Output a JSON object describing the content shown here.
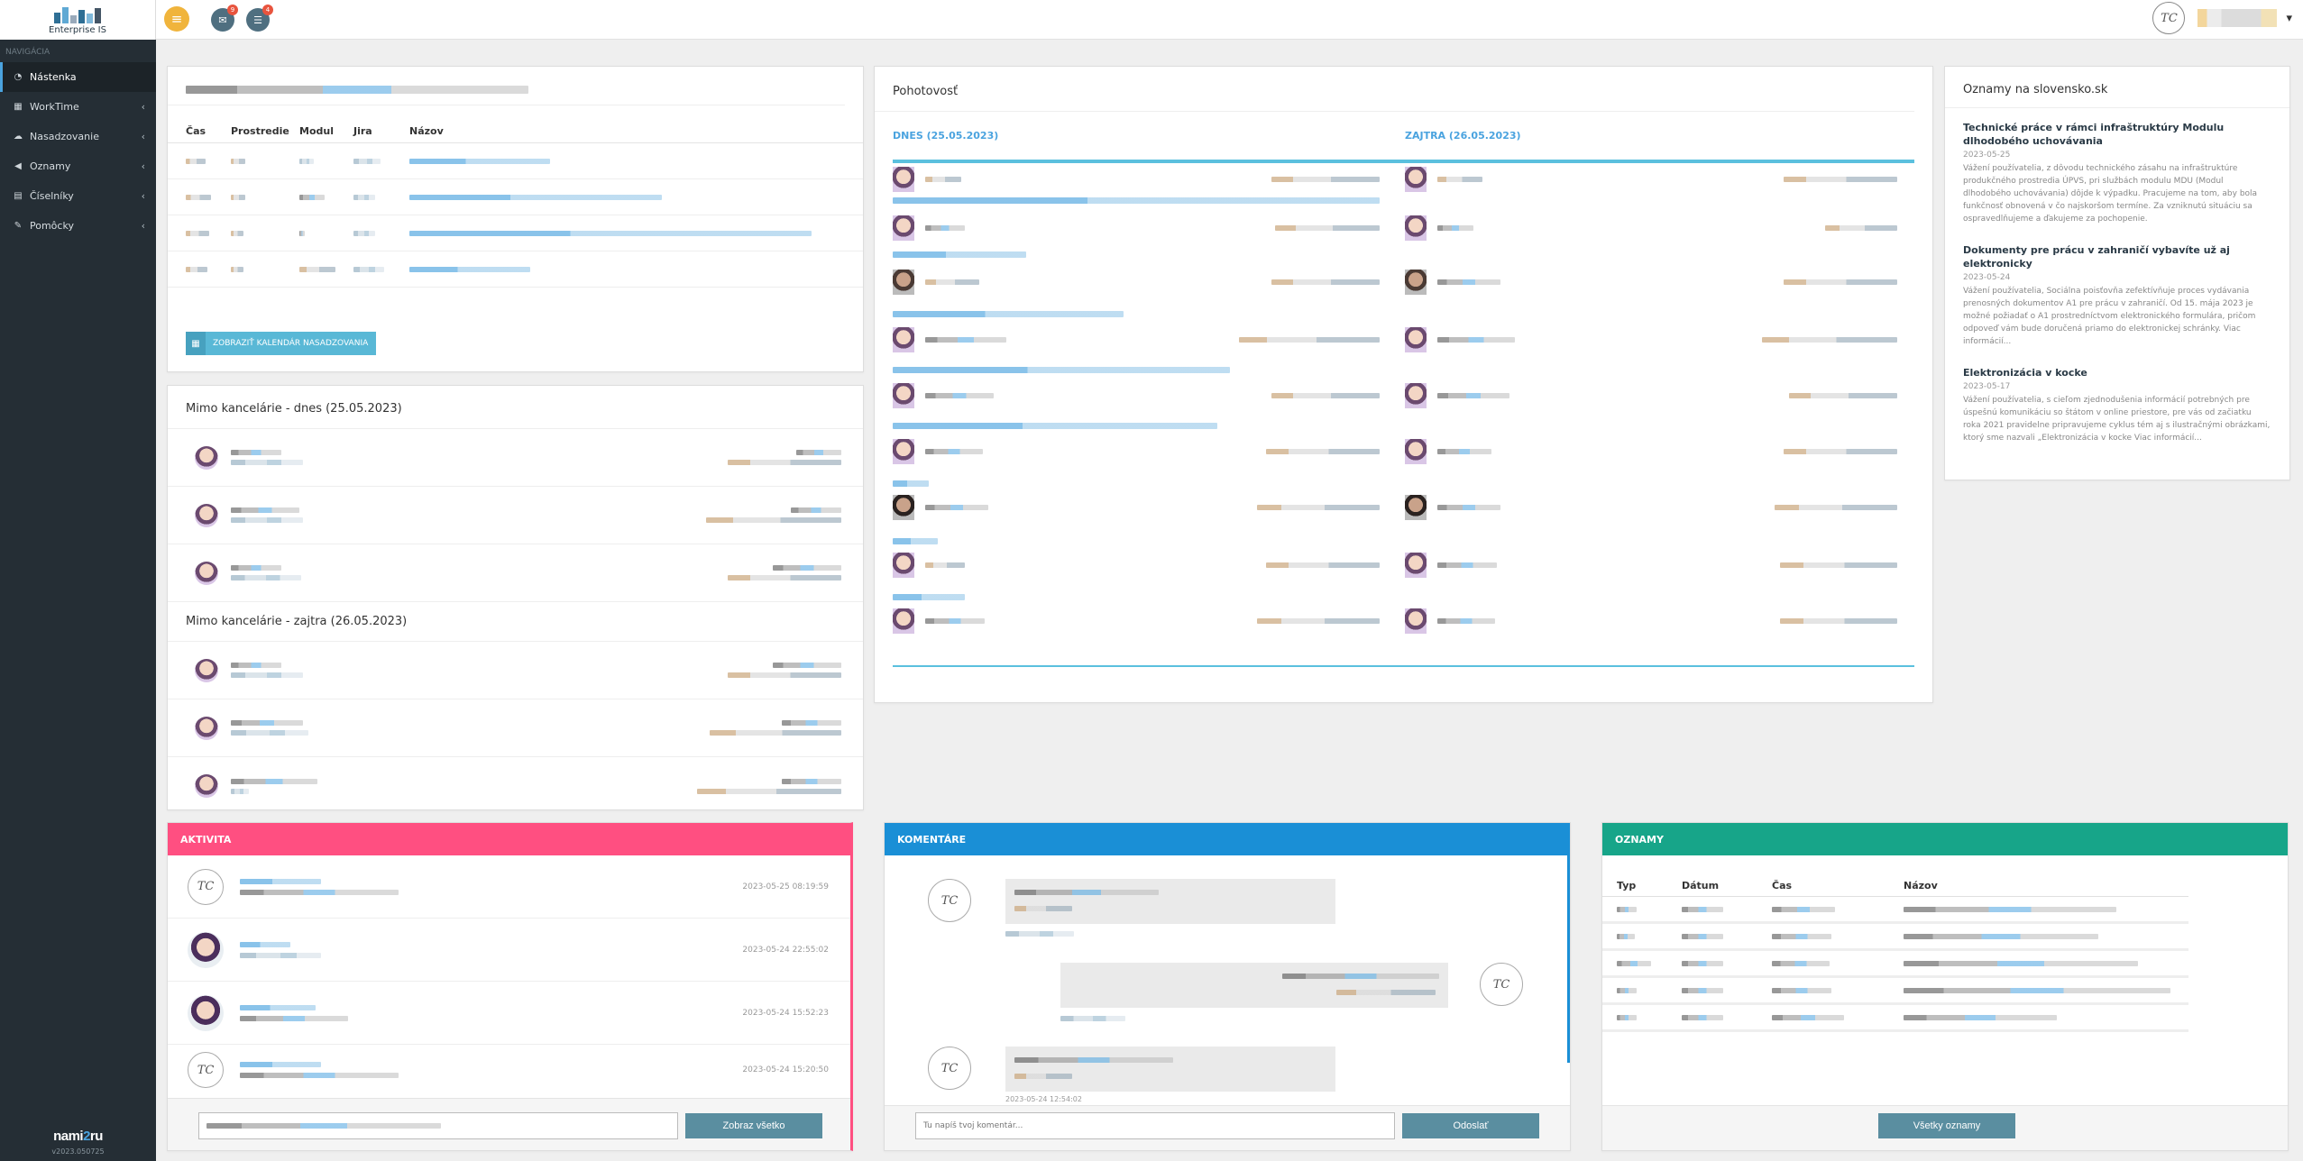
{
  "sidebar": {
    "brand_name": "Enterprise IS",
    "nav_heading": "NAVIGÁCIA",
    "items": [
      {
        "label": "Nástenka",
        "icon": "dashboard-icon",
        "active": true
      },
      {
        "label": "WorkTime",
        "icon": "calendar-icon"
      },
      {
        "label": "Nasadzovanie",
        "icon": "cloud-icon"
      },
      {
        "label": "Oznamy",
        "icon": "megaphone-icon"
      },
      {
        "label": "Číselníky",
        "icon": "table-icon"
      },
      {
        "label": "Pomôcky",
        "icon": "wrench-icon"
      }
    ],
    "footer_logo": "nami",
    "footer_logo_accent": "2",
    "footer_logo_end": "ru",
    "version": "v2023.050725"
  },
  "topbar": {
    "messages_badge": "9",
    "tasks_badge": "4",
    "menu_icon": "hamburger-icon",
    "avatar_initials": "TC",
    "user_chevron": "▾"
  },
  "deploy": {
    "columns": [
      "Čas",
      "Prostredie",
      "Modul",
      "Jira",
      "Názov"
    ],
    "button": "ZOBRAZIŤ KALENDÁR NASADZOVANIA"
  },
  "absence": {
    "today": "Mimo kancelárie - dnes (25.05.2023)",
    "tomorrow": "Mimo kancelárie - zajtra (26.05.2023)"
  },
  "pohotovost": {
    "title": "Pohotovosť",
    "today": "DNES (25.05.2023)",
    "tomorrow": "ZAJTRA (26.05.2023)"
  },
  "news": {
    "title": "Oznamy na slovensko.sk",
    "items": [
      {
        "title": "Technické práce v rámci infraštruktúry Modulu dlhodobého uchovávania",
        "date": "2023-05-25",
        "text": "Vážení používatelia, z dôvodu technického zásahu na infraštruktúre produkčného prostredia ÚPVS, pri službách modulu MDU (Modul dlhodobého uchovávania) dôjde k výpadku. Pracujeme na tom, aby bola funkčnosť obnovená v čo najskoršom termíne. Za vzniknutú situáciu sa ospravedlňujeme a ďakujeme za pochopenie."
      },
      {
        "title": "Dokumenty pre prácu v zahraničí vybavíte už aj elektronicky",
        "date": "2023-05-24",
        "text": "Vážení používatelia, Sociálna poisťovňa zefektívňuje proces vydávania prenosných dokumentov A1 pre prácu v zahraničí. Od 15. mája 2023 je možné požiadať o A1 prostredníctvom elektronického formulára, pričom odpoveď vám bude doručená priamo do elektronickej schránky. Viac informácií..."
      },
      {
        "title": "Elektronizácia v kocke",
        "date": "2023-05-17",
        "text": "Vážení používatelia, s cieľom zjednodušenia informácií potrebných pre úspešnú komunikáciu so štátom v online priestore, pre vás od začiatku roka 2021 pravidelne pripravujeme cyklus tém aj s ilustračnými obrázkami, ktorý sme nazvali „Elektronizácia v kocke Viac informácií..."
      }
    ]
  },
  "activity": {
    "title": "AKTIVITA",
    "times": [
      "2023-05-25 08:19:59",
      "2023-05-24 22:55:02",
      "2023-05-24 15:52:23",
      "2023-05-24 15:20:50"
    ],
    "button": "Zobraz všetko"
  },
  "comments": {
    "title": "KOMENTÁRE",
    "last_time": "2023-05-24 12:54:02",
    "placeholder": "Tu napíš tvoj komentár...",
    "button": "Odoslať"
  },
  "announcements": {
    "title": "OZNAMY",
    "columns": [
      "Typ",
      "Dátum",
      "Čas",
      "Názov"
    ],
    "button": "Všetky oznamy"
  },
  "colors": {
    "sidebar": "#252e35",
    "activity": "#ff4f81",
    "comments": "#1a8fd6",
    "announcements": "#17a589",
    "accent": "#4aa3df"
  }
}
